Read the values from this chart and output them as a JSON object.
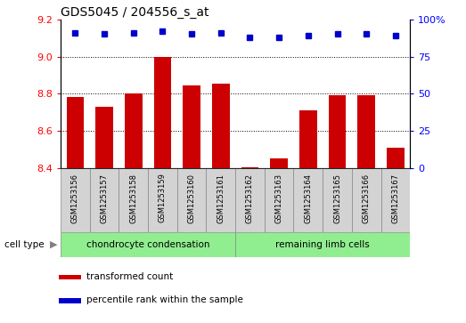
{
  "title": "GDS5045 / 204556_s_at",
  "samples": [
    "GSM1253156",
    "GSM1253157",
    "GSM1253158",
    "GSM1253159",
    "GSM1253160",
    "GSM1253161",
    "GSM1253162",
    "GSM1253163",
    "GSM1253164",
    "GSM1253165",
    "GSM1253166",
    "GSM1253167"
  ],
  "transformed_count": [
    8.78,
    8.73,
    8.8,
    9.0,
    8.845,
    8.855,
    8.405,
    8.45,
    8.71,
    8.79,
    8.79,
    8.51
  ],
  "percentile_rank": [
    91,
    90,
    91,
    92,
    90,
    91,
    88,
    88,
    89,
    90,
    90,
    89
  ],
  "bar_color": "#cc0000",
  "dot_color": "#0000cc",
  "ylim_left": [
    8.4,
    9.2
  ],
  "ylim_right": [
    0,
    100
  ],
  "yticks_left": [
    8.4,
    8.6,
    8.8,
    9.0,
    9.2
  ],
  "yticks_right": [
    0,
    25,
    50,
    75,
    100
  ],
  "ytick_labels_right": [
    "0",
    "25",
    "50",
    "75",
    "100%"
  ],
  "grid_values": [
    9.0,
    8.8,
    8.6
  ],
  "groups": [
    {
      "label": "chondrocyte condensation",
      "start": 0,
      "end": 6,
      "color": "#90ee90"
    },
    {
      "label": "remaining limb cells",
      "start": 6,
      "end": 12,
      "color": "#90ee90"
    }
  ],
  "cell_type_label": "cell type",
  "legend_items": [
    {
      "label": "transformed count",
      "color": "#cc0000"
    },
    {
      "label": "percentile rank within the sample",
      "color": "#0000cc"
    }
  ],
  "bg_color": "#d3d3d3",
  "plot_bg": "#ffffff",
  "fig_bg": "#ffffff"
}
